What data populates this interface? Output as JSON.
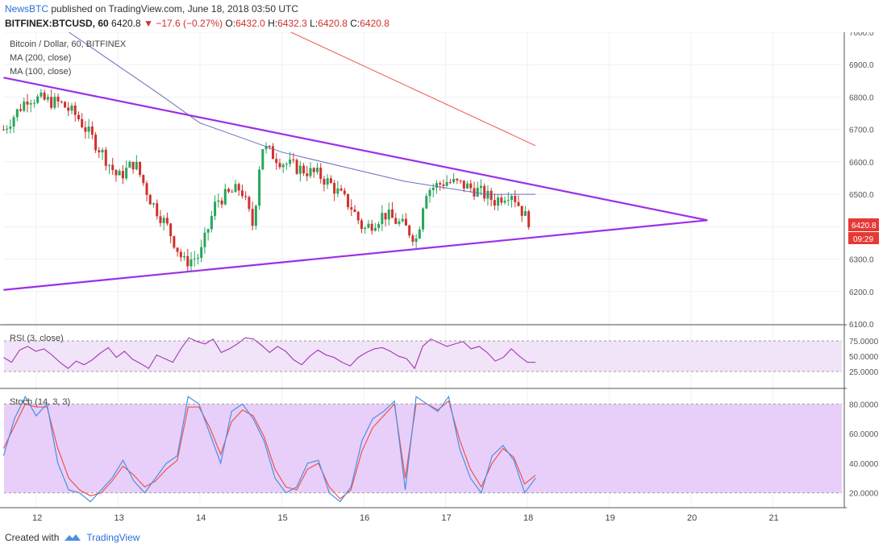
{
  "header": {
    "author": "NewsBTC",
    "published_text": "published on TradingView.com, June 18, 2018 03:50 UTC",
    "symbol": "BITFINEX:BTCUSD, 60",
    "last": "6420.8",
    "change": "−17.6 (−0.27%)",
    "o_label": "O:",
    "o_val": "6432.0",
    "h_label": "H:",
    "h_val": "6432.3",
    "l_label": "L:",
    "l_val": "6420.8",
    "c_label": "C:",
    "c_val": "6420.8"
  },
  "legend": {
    "title": "Bitcoin / Dollar, 60, BITFINEX",
    "ma200": "MA (200, close)",
    "ma100": "MA (100, close)"
  },
  "rsi_label": "RSI (3, close)",
  "stoch_label": "Stoch (14, 3, 3)",
  "price_badge": "6420.8",
  "time_badge": "09:29",
  "footer": {
    "created_with": "Created with",
    "brand": "TradingView"
  },
  "colors": {
    "bull": "#26a65b",
    "bear": "#d0312d",
    "trendline": "#9b30e8",
    "ma200": "#f0534a",
    "ma100": "#6a6fbf",
    "rsi": "#9c27b0",
    "stoch_k": "#4a90e2",
    "stoch_d": "#f0534a"
  },
  "chart_data": {
    "type": "candlestick",
    "x_ticks": [
      "12",
      "13",
      "14",
      "15",
      "16",
      "17",
      "18",
      "19",
      "20",
      "21"
    ],
    "y_ticks": [
      "7000.0",
      "6900.0",
      "6800.0",
      "6700.0",
      "6600.0",
      "6500.0",
      "6400.0",
      "6300.0",
      "6200.0",
      "6100.0"
    ],
    "price_ylim": [
      6100,
      7000
    ],
    "close_path": [
      [
        11.6,
        6700
      ],
      [
        11.9,
        6800
      ],
      [
        12.3,
        6780
      ],
      [
        12.5,
        6740
      ],
      [
        12.8,
        6630
      ],
      [
        13.0,
        6550
      ],
      [
        13.2,
        6600
      ],
      [
        13.4,
        6480
      ],
      [
        13.6,
        6400
      ],
      [
        13.8,
        6290
      ],
      [
        14.0,
        6310
      ],
      [
        14.2,
        6480
      ],
      [
        14.5,
        6520
      ],
      [
        14.65,
        6400
      ],
      [
        14.75,
        6650
      ],
      [
        15.0,
        6600
      ],
      [
        15.2,
        6580
      ],
      [
        15.45,
        6560
      ],
      [
        15.6,
        6530
      ],
      [
        15.85,
        6460
      ],
      [
        16.0,
        6390
      ],
      [
        16.25,
        6440
      ],
      [
        16.5,
        6400
      ],
      [
        16.65,
        6360
      ],
      [
        16.75,
        6510
      ],
      [
        17.0,
        6540
      ],
      [
        17.2,
        6530
      ],
      [
        17.4,
        6510
      ],
      [
        17.6,
        6480
      ],
      [
        17.8,
        6510
      ],
      [
        18.0,
        6420
      ]
    ],
    "ma200_points": [
      [
        14.6,
        7060
      ],
      [
        18.1,
        6650
      ]
    ],
    "ma100_points": [
      [
        12.4,
        7000
      ],
      [
        13.5,
        6810
      ],
      [
        14.0,
        6720
      ],
      [
        15.0,
        6630
      ],
      [
        16.5,
        6540
      ],
      [
        17.5,
        6500
      ],
      [
        18.1,
        6500
      ]
    ],
    "trendline_upper": [
      [
        11.6,
        6860
      ],
      [
        20.2,
        6420
      ]
    ],
    "trendline_lower": [
      [
        11.6,
        6205
      ],
      [
        20.2,
        6420
      ]
    ],
    "rsi": {
      "ylim": [
        0,
        100
      ],
      "y_ticks": [
        "75.0000",
        "50.0000",
        "25.0000"
      ],
      "bands": [
        25,
        75
      ],
      "values": [
        48,
        40,
        60,
        66,
        58,
        62,
        52,
        40,
        30,
        42,
        36,
        44,
        55,
        64,
        48,
        58,
        45,
        38,
        30,
        52,
        46,
        40,
        62,
        80,
        74,
        70,
        78,
        56,
        62,
        70,
        80,
        78,
        68,
        56,
        66,
        58,
        44,
        36,
        50,
        60,
        52,
        48,
        40,
        34,
        48,
        56,
        62,
        64,
        58,
        50,
        46,
        30,
        66,
        78,
        72,
        66,
        70,
        74,
        62,
        66,
        56,
        42,
        48,
        62,
        50,
        40,
        40
      ]
    },
    "stoch": {
      "ylim": [
        10,
        90
      ],
      "y_ticks": [
        "80.0000",
        "60.0000",
        "40.0000",
        "20.0000"
      ],
      "bands": [
        20,
        80
      ],
      "k": [
        45,
        70,
        85,
        72,
        80,
        40,
        22,
        20,
        14,
        22,
        30,
        42,
        28,
        20,
        30,
        40,
        45,
        85,
        80,
        60,
        40,
        75,
        80,
        70,
        55,
        30,
        20,
        24,
        40,
        42,
        20,
        14,
        24,
        55,
        70,
        75,
        82,
        22,
        85,
        80,
        75,
        85,
        50,
        30,
        20,
        45,
        52,
        42,
        20,
        30
      ],
      "d": [
        50,
        65,
        80,
        78,
        78,
        50,
        30,
        22,
        18,
        20,
        28,
        38,
        32,
        24,
        28,
        36,
        42,
        78,
        78,
        64,
        46,
        68,
        76,
        72,
        58,
        36,
        24,
        22,
        36,
        40,
        24,
        16,
        22,
        48,
        64,
        72,
        80,
        30,
        80,
        80,
        76,
        82,
        56,
        36,
        24,
        40,
        50,
        44,
        26,
        32
      ]
    }
  }
}
